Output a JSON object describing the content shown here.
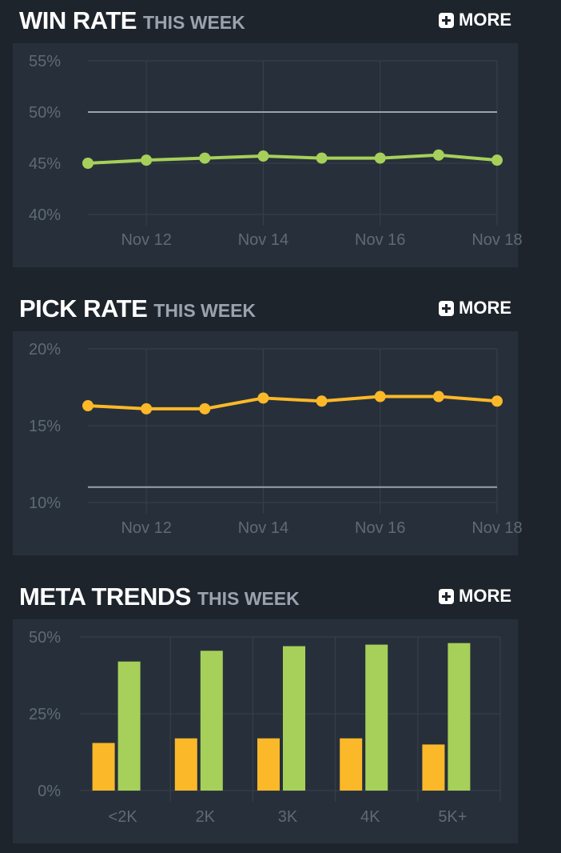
{
  "sections": [
    {
      "title": "WIN RATE",
      "subtitle": "THIS WEEK",
      "more_label": "MORE",
      "chart_data": {
        "type": "line",
        "x": [
          "Nov 11",
          "Nov 12",
          "Nov 13",
          "Nov 14",
          "Nov 15",
          "Nov 16",
          "Nov 17",
          "Nov 18"
        ],
        "x_tick_labels": [
          "Nov 12",
          "Nov 14",
          "Nov 16",
          "Nov 18"
        ],
        "y_tick_labels": [
          "55%",
          "50%",
          "45%",
          "40%"
        ],
        "ylim": [
          40,
          55
        ],
        "reference_line": 50,
        "series": [
          {
            "values": [
              45.0,
              45.3,
              45.5,
              45.7,
              45.5,
              45.5,
              45.8,
              45.3
            ],
            "color": "#a6d05a"
          }
        ]
      }
    },
    {
      "title": "PICK RATE",
      "subtitle": "THIS WEEK",
      "more_label": "MORE",
      "chart_data": {
        "type": "line",
        "x": [
          "Nov 11",
          "Nov 12",
          "Nov 13",
          "Nov 14",
          "Nov 15",
          "Nov 16",
          "Nov 17",
          "Nov 18"
        ],
        "x_tick_labels": [
          "Nov 12",
          "Nov 14",
          "Nov 16",
          "Nov 18"
        ],
        "y_tick_labels": [
          "20%",
          "15%",
          "10%"
        ],
        "ylim": [
          10,
          20
        ],
        "reference_line": 11,
        "series": [
          {
            "values": [
              16.3,
              16.1,
              16.1,
              16.8,
              16.6,
              16.9,
              16.9,
              16.6
            ],
            "color": "#fbb829"
          }
        ]
      }
    },
    {
      "title": "META TRENDS",
      "subtitle": "THIS WEEK",
      "more_label": "MORE",
      "chart_data": {
        "type": "bar",
        "categories": [
          "<2K",
          "2K",
          "3K",
          "4K",
          "5K+"
        ],
        "y_tick_labels": [
          "50%",
          "25%",
          "0%"
        ],
        "ylim": [
          0,
          50
        ],
        "series": [
          {
            "values": [
              15.5,
              17.0,
              17.0,
              17.0,
              15.0
            ],
            "color": "#fbb829"
          },
          {
            "values": [
              42.0,
              45.5,
              47.0,
              47.5,
              48.0
            ],
            "color": "#a6d05a"
          }
        ]
      }
    }
  ]
}
